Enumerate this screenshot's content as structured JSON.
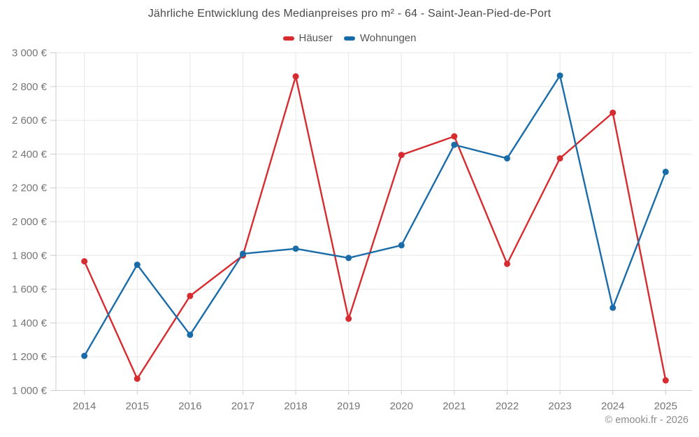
{
  "page": {
    "copyright": "© emooki.fr - 2026"
  },
  "chart_data": {
    "type": "line",
    "title": "Jährliche Entwicklung des Medianpreises pro m² - 64 - Saint-Jean-Pied-de-Port",
    "categories": [
      "2014",
      "2015",
      "2016",
      "2017",
      "2018",
      "2019",
      "2020",
      "2021",
      "2022",
      "2023",
      "2024",
      "2025"
    ],
    "series": [
      {
        "name": "Häuser",
        "color": "#d62b2f",
        "values": [
          1765,
          1070,
          1560,
          1800,
          2860,
          1425,
          2395,
          2505,
          1750,
          2375,
          2645,
          1060
        ]
      },
      {
        "name": "Wohnungen",
        "color": "#1a6ca8",
        "values": [
          1205,
          1745,
          1330,
          1810,
          1840,
          1785,
          1860,
          2455,
          2375,
          2865,
          1490,
          2295
        ]
      }
    ],
    "xlabel": "",
    "ylabel": "",
    "unit": "€",
    "ylim": [
      1000,
      3000
    ],
    "grid": true,
    "legend_position": "top",
    "yticks": [
      {
        "value": 1000,
        "label": "1 000 €"
      },
      {
        "value": 1200,
        "label": "1 200 €"
      },
      {
        "value": 1400,
        "label": "1 400 €"
      },
      {
        "value": 1600,
        "label": "1 600 €"
      },
      {
        "value": 1800,
        "label": "1 800 €"
      },
      {
        "value": 2000,
        "label": "2 000 €"
      },
      {
        "value": 2200,
        "label": "2 200 €"
      },
      {
        "value": 2400,
        "label": "2 400 €"
      },
      {
        "value": 2600,
        "label": "2 600 €"
      },
      {
        "value": 2800,
        "label": "2 800 €"
      },
      {
        "value": 3000,
        "label": "3 000 €"
      }
    ]
  }
}
